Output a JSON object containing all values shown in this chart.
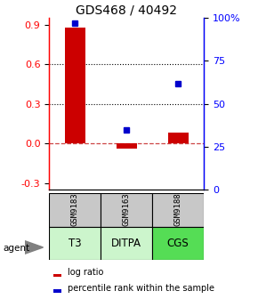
{
  "title": "GDS468 / 40492",
  "samples": [
    "GSM9183",
    "GSM9163",
    "GSM9188"
  ],
  "agents": [
    "T3",
    "DITPA",
    "CGS"
  ],
  "log_ratios": [
    0.88,
    -0.04,
    0.08
  ],
  "percentile_ranks": [
    97,
    35,
    62
  ],
  "ylim_left": [
    -0.35,
    0.95
  ],
  "left_ticks": [
    -0.3,
    0.0,
    0.3,
    0.6,
    0.9
  ],
  "right_ticks": [
    0,
    25,
    50,
    75,
    100
  ],
  "right_tick_labels": [
    "0",
    "25",
    "50",
    "75",
    "100%"
  ],
  "bar_color": "#cc0000",
  "dot_color": "#0000cc",
  "dashed_line_color": "#cc4444",
  "grid_line_color": "#000000",
  "bg_color": "#ffffff",
  "cell_gray": "#c8c8c8",
  "cell_green_light": "#ccf5cc",
  "cell_green_medium": "#55dd55",
  "title_fontsize": 10,
  "tick_fontsize": 8,
  "label_fontsize": 8
}
